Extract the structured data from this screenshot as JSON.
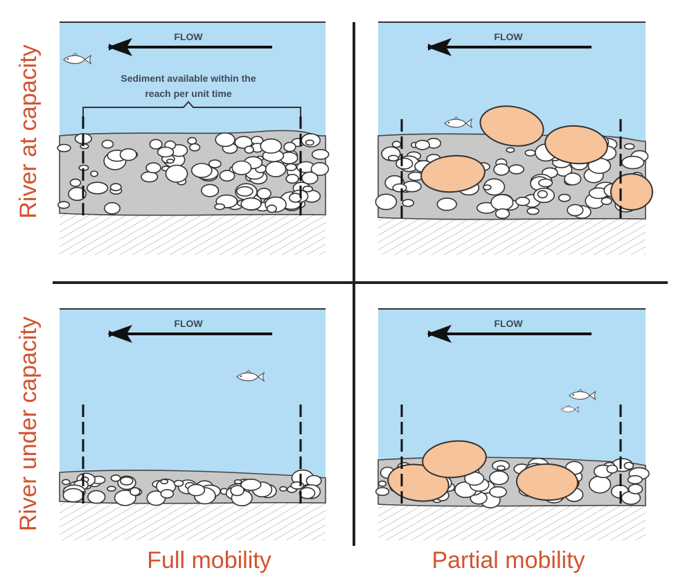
{
  "row_labels": {
    "top": "River at capacity",
    "bottom": "River under capacity"
  },
  "column_labels": {
    "left": "Full mobility",
    "right": "Partial mobility"
  },
  "panels": {
    "top_left": {
      "flow_label": "FLOW",
      "annotation_line1": "Sediment available within the",
      "annotation_line2": "reach per unit time"
    },
    "top_right": {
      "flow_label": "FLOW"
    },
    "bottom_left": {
      "flow_label": "FLOW"
    },
    "bottom_right": {
      "flow_label": "FLOW"
    }
  },
  "colors": {
    "water": "#b3dcf5",
    "sediment": "#c8c8c8",
    "pebble": "#ffffff",
    "boulder": "#f6c39a",
    "label": "#d2532f",
    "divider": "#222222"
  }
}
